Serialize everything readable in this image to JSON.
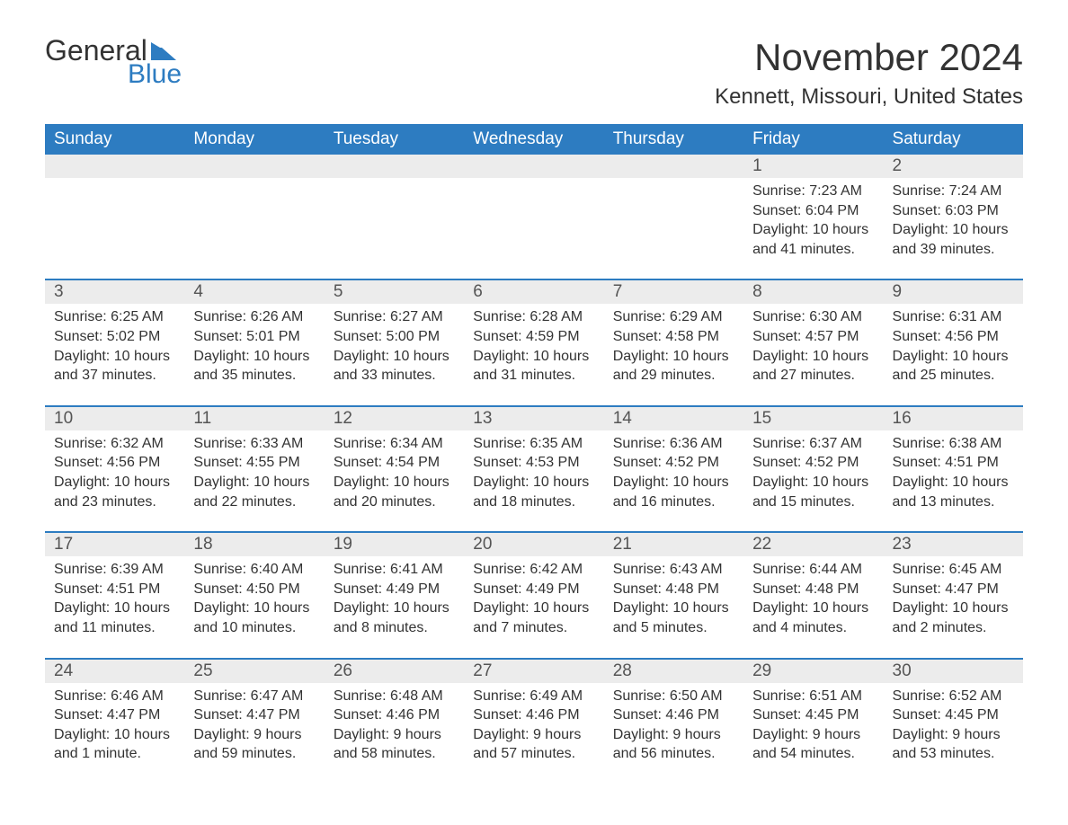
{
  "logo": {
    "text_top": "General",
    "text_bottom": "Blue",
    "icon_color": "#2d7cc1"
  },
  "title": "November 2024",
  "location": "Kennett, Missouri, United States",
  "colors": {
    "header_bg": "#2d7cc1",
    "header_text": "#ffffff",
    "daynum_bg": "#ececec",
    "row_border": "#2d7cc1",
    "body_text": "#333333",
    "background": "#ffffff"
  },
  "weekdays": [
    "Sunday",
    "Monday",
    "Tuesday",
    "Wednesday",
    "Thursday",
    "Friday",
    "Saturday"
  ],
  "weeks": [
    {
      "days": [
        null,
        null,
        null,
        null,
        null,
        {
          "n": "1",
          "sunrise": "Sunrise: 7:23 AM",
          "sunset": "Sunset: 6:04 PM",
          "daylight": "Daylight: 10 hours and 41 minutes."
        },
        {
          "n": "2",
          "sunrise": "Sunrise: 7:24 AM",
          "sunset": "Sunset: 6:03 PM",
          "daylight": "Daylight: 10 hours and 39 minutes."
        }
      ]
    },
    {
      "days": [
        {
          "n": "3",
          "sunrise": "Sunrise: 6:25 AM",
          "sunset": "Sunset: 5:02 PM",
          "daylight": "Daylight: 10 hours and 37 minutes."
        },
        {
          "n": "4",
          "sunrise": "Sunrise: 6:26 AM",
          "sunset": "Sunset: 5:01 PM",
          "daylight": "Daylight: 10 hours and 35 minutes."
        },
        {
          "n": "5",
          "sunrise": "Sunrise: 6:27 AM",
          "sunset": "Sunset: 5:00 PM",
          "daylight": "Daylight: 10 hours and 33 minutes."
        },
        {
          "n": "6",
          "sunrise": "Sunrise: 6:28 AM",
          "sunset": "Sunset: 4:59 PM",
          "daylight": "Daylight: 10 hours and 31 minutes."
        },
        {
          "n": "7",
          "sunrise": "Sunrise: 6:29 AM",
          "sunset": "Sunset: 4:58 PM",
          "daylight": "Daylight: 10 hours and 29 minutes."
        },
        {
          "n": "8",
          "sunrise": "Sunrise: 6:30 AM",
          "sunset": "Sunset: 4:57 PM",
          "daylight": "Daylight: 10 hours and 27 minutes."
        },
        {
          "n": "9",
          "sunrise": "Sunrise: 6:31 AM",
          "sunset": "Sunset: 4:56 PM",
          "daylight": "Daylight: 10 hours and 25 minutes."
        }
      ]
    },
    {
      "days": [
        {
          "n": "10",
          "sunrise": "Sunrise: 6:32 AM",
          "sunset": "Sunset: 4:56 PM",
          "daylight": "Daylight: 10 hours and 23 minutes."
        },
        {
          "n": "11",
          "sunrise": "Sunrise: 6:33 AM",
          "sunset": "Sunset: 4:55 PM",
          "daylight": "Daylight: 10 hours and 22 minutes."
        },
        {
          "n": "12",
          "sunrise": "Sunrise: 6:34 AM",
          "sunset": "Sunset: 4:54 PM",
          "daylight": "Daylight: 10 hours and 20 minutes."
        },
        {
          "n": "13",
          "sunrise": "Sunrise: 6:35 AM",
          "sunset": "Sunset: 4:53 PM",
          "daylight": "Daylight: 10 hours and 18 minutes."
        },
        {
          "n": "14",
          "sunrise": "Sunrise: 6:36 AM",
          "sunset": "Sunset: 4:52 PM",
          "daylight": "Daylight: 10 hours and 16 minutes."
        },
        {
          "n": "15",
          "sunrise": "Sunrise: 6:37 AM",
          "sunset": "Sunset: 4:52 PM",
          "daylight": "Daylight: 10 hours and 15 minutes."
        },
        {
          "n": "16",
          "sunrise": "Sunrise: 6:38 AM",
          "sunset": "Sunset: 4:51 PM",
          "daylight": "Daylight: 10 hours and 13 minutes."
        }
      ]
    },
    {
      "days": [
        {
          "n": "17",
          "sunrise": "Sunrise: 6:39 AM",
          "sunset": "Sunset: 4:51 PM",
          "daylight": "Daylight: 10 hours and 11 minutes."
        },
        {
          "n": "18",
          "sunrise": "Sunrise: 6:40 AM",
          "sunset": "Sunset: 4:50 PM",
          "daylight": "Daylight: 10 hours and 10 minutes."
        },
        {
          "n": "19",
          "sunrise": "Sunrise: 6:41 AM",
          "sunset": "Sunset: 4:49 PM",
          "daylight": "Daylight: 10 hours and 8 minutes."
        },
        {
          "n": "20",
          "sunrise": "Sunrise: 6:42 AM",
          "sunset": "Sunset: 4:49 PM",
          "daylight": "Daylight: 10 hours and 7 minutes."
        },
        {
          "n": "21",
          "sunrise": "Sunrise: 6:43 AM",
          "sunset": "Sunset: 4:48 PM",
          "daylight": "Daylight: 10 hours and 5 minutes."
        },
        {
          "n": "22",
          "sunrise": "Sunrise: 6:44 AM",
          "sunset": "Sunset: 4:48 PM",
          "daylight": "Daylight: 10 hours and 4 minutes."
        },
        {
          "n": "23",
          "sunrise": "Sunrise: 6:45 AM",
          "sunset": "Sunset: 4:47 PM",
          "daylight": "Daylight: 10 hours and 2 minutes."
        }
      ]
    },
    {
      "days": [
        {
          "n": "24",
          "sunrise": "Sunrise: 6:46 AM",
          "sunset": "Sunset: 4:47 PM",
          "daylight": "Daylight: 10 hours and 1 minute."
        },
        {
          "n": "25",
          "sunrise": "Sunrise: 6:47 AM",
          "sunset": "Sunset: 4:47 PM",
          "daylight": "Daylight: 9 hours and 59 minutes."
        },
        {
          "n": "26",
          "sunrise": "Sunrise: 6:48 AM",
          "sunset": "Sunset: 4:46 PM",
          "daylight": "Daylight: 9 hours and 58 minutes."
        },
        {
          "n": "27",
          "sunrise": "Sunrise: 6:49 AM",
          "sunset": "Sunset: 4:46 PM",
          "daylight": "Daylight: 9 hours and 57 minutes."
        },
        {
          "n": "28",
          "sunrise": "Sunrise: 6:50 AM",
          "sunset": "Sunset: 4:46 PM",
          "daylight": "Daylight: 9 hours and 56 minutes."
        },
        {
          "n": "29",
          "sunrise": "Sunrise: 6:51 AM",
          "sunset": "Sunset: 4:45 PM",
          "daylight": "Daylight: 9 hours and 54 minutes."
        },
        {
          "n": "30",
          "sunrise": "Sunrise: 6:52 AM",
          "sunset": "Sunset: 4:45 PM",
          "daylight": "Daylight: 9 hours and 53 minutes."
        }
      ]
    }
  ]
}
